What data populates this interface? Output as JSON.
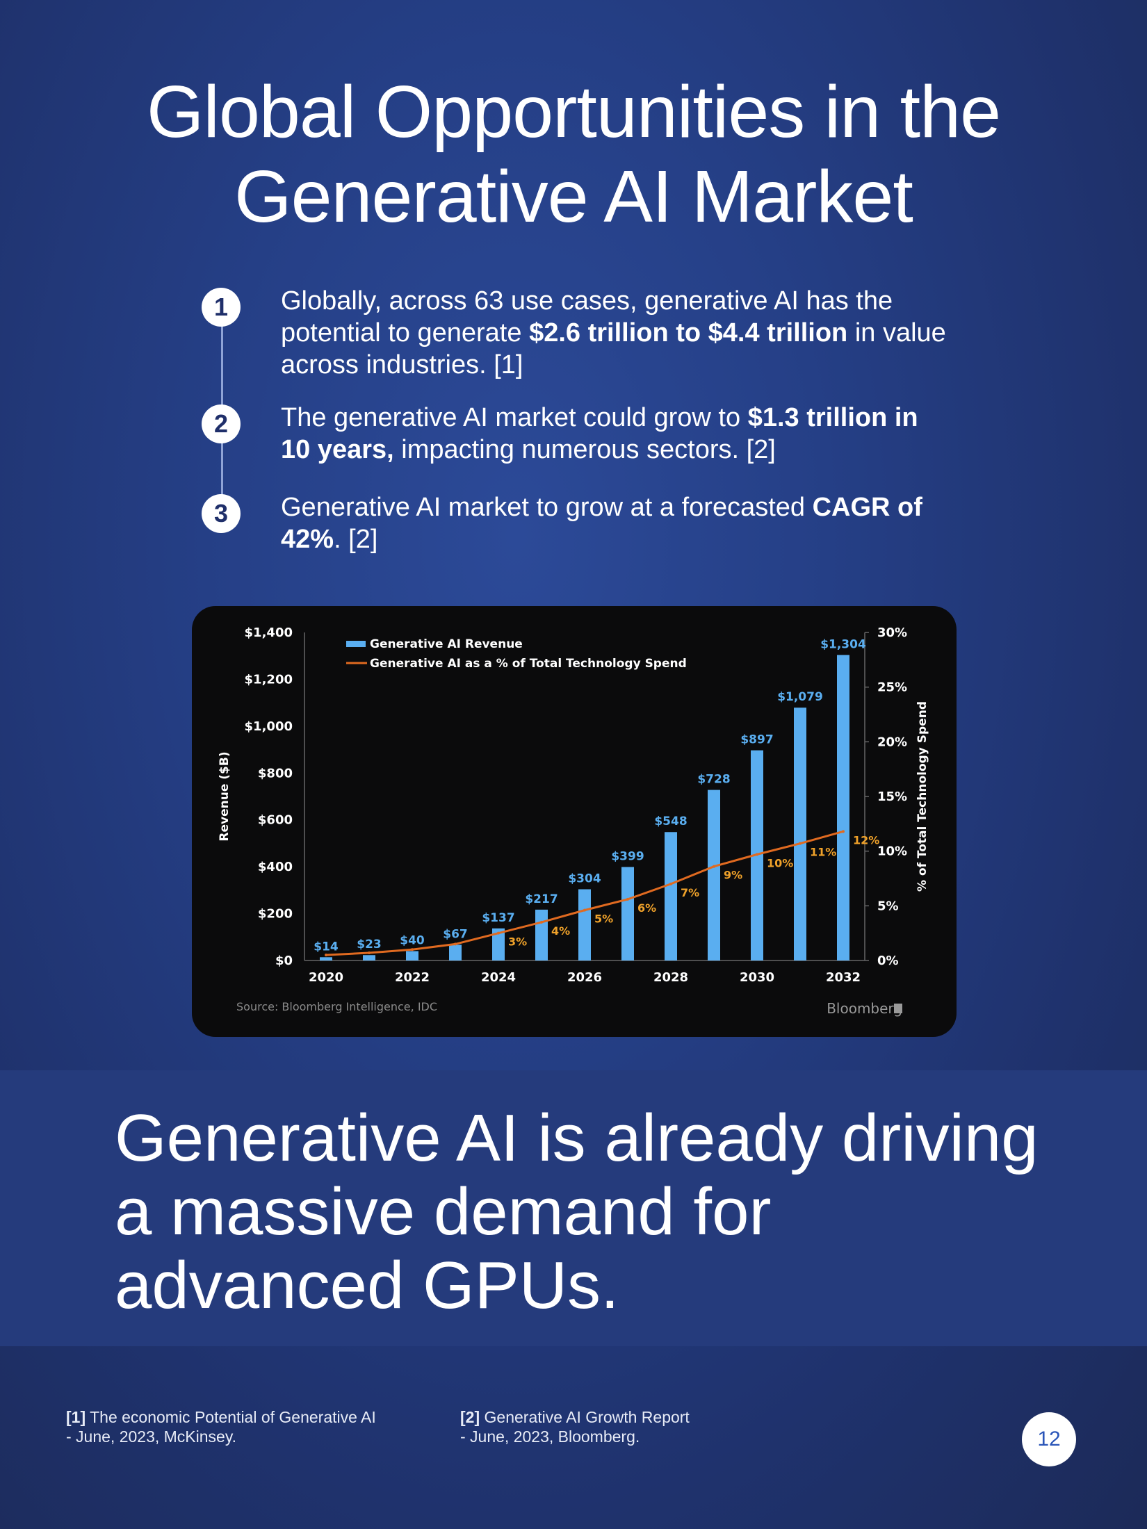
{
  "header": {
    "title_line1": "Global Opportunities in the",
    "title_line2": "Generative AI Market"
  },
  "points": [
    {
      "num": "1",
      "pre": "Globally, across 63 use cases, generative AI has the potential to generate ",
      "bold": "$2.6 trillion to $4.4 trillion",
      "post": " in value across industries. [1]"
    },
    {
      "num": "2",
      "pre": "The generative AI market could grow to ",
      "bold": "$1.3 trillion in 10 years,",
      "post": " impacting numerous sectors. [2]"
    },
    {
      "num": "3",
      "pre": "Generative AI market to grow at a forecasted ",
      "bold": "CAGR of 42%",
      "post": ". [2]"
    }
  ],
  "chart_data": {
    "type": "bar",
    "categories": [
      "2020",
      "2021",
      "2022",
      "2023",
      "2024",
      "2025",
      "2026",
      "2027",
      "2028",
      "2029",
      "2030",
      "2031",
      "2032"
    ],
    "x_tick_labels": [
      "2020",
      "2022",
      "2024",
      "2026",
      "2028",
      "2030",
      "2032"
    ],
    "series": [
      {
        "name": "Generative AI Revenue",
        "type": "bar",
        "axis": "left",
        "color": "#5aaef0",
        "values": [
          14,
          23,
          40,
          67,
          137,
          217,
          304,
          399,
          548,
          728,
          897,
          1079,
          1304
        ],
        "labels": [
          "$14",
          "$23",
          "$40",
          "$67",
          "$137",
          "$217",
          "$304",
          "$399",
          "$548",
          "$728",
          "$897",
          "$1,079",
          "$1,304"
        ]
      },
      {
        "name": "Generative AI as a % of Total Technology Spend",
        "type": "line",
        "axis": "right",
        "color": "#e06a20",
        "values": [
          0.5,
          0.7,
          1,
          1.5,
          2.5,
          3.5,
          4.6,
          5.6,
          7,
          8.6,
          9.7,
          10.7,
          11.8
        ],
        "labels": [
          "",
          "",
          "",
          "",
          "3%",
          "4%",
          "5%",
          "6%",
          "7%",
          "9%",
          "10%",
          "11%",
          "12%"
        ]
      }
    ],
    "ylabel": "Revenue ($B)",
    "ylim": [
      0,
      1400
    ],
    "y_ticks": [
      "$0",
      "$200",
      "$400",
      "$600",
      "$800",
      "$1,000",
      "$1,200",
      "$1,400"
    ],
    "y2label": "% of Total Technology Spend",
    "y2lim": [
      0,
      30
    ],
    "y2_ticks": [
      "0%",
      "5%",
      "10%",
      "15%",
      "20%",
      "25%",
      "30%"
    ],
    "legend_position": "top-left",
    "source": "Source: Bloomberg Intelligence, IDC",
    "brand": "Bloomberg"
  },
  "band": {
    "line1": "Generative AI is already driving",
    "line2": "a massive demand for",
    "line3": "advanced GPUs."
  },
  "references": [
    {
      "tag": "[1]",
      "line1": " The economic Potential of Generative AI",
      "line2": "- June, 2023, McKinsey."
    },
    {
      "tag": "[2]",
      "line1": " Generative AI Growth Report",
      "line2": "- June, 2023, Bloomberg."
    }
  ],
  "page_number": "12"
}
